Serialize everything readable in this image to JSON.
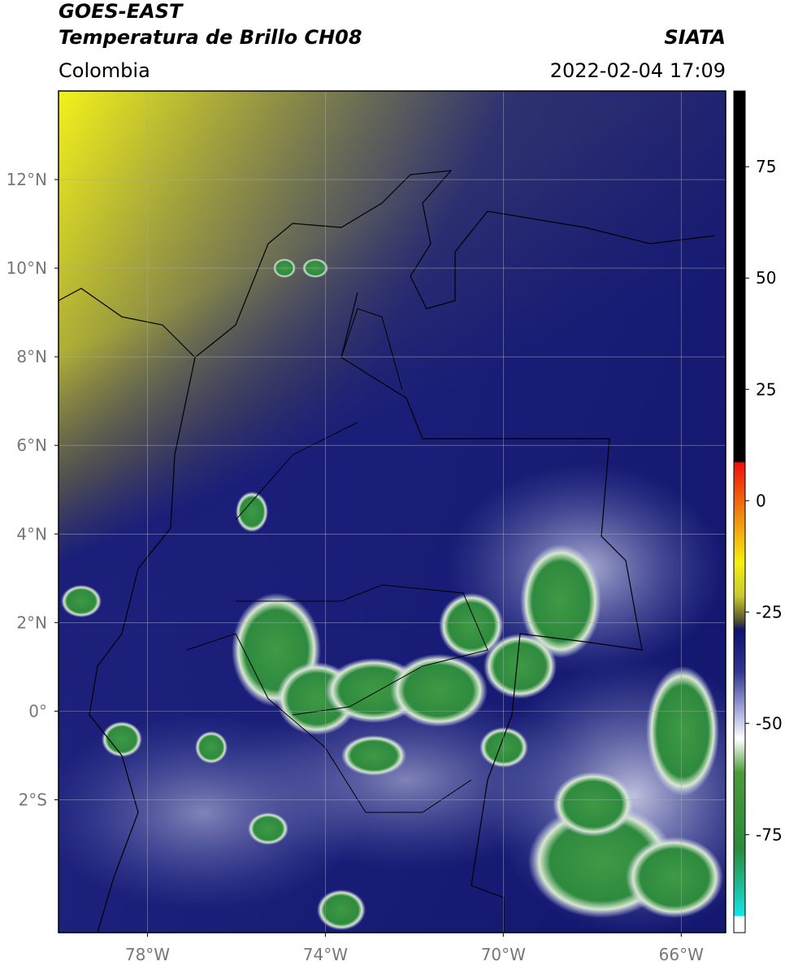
{
  "header": {
    "satellite": "GOES-EAST",
    "product": "Temperatura de Brillo CH08",
    "region": "Colombia",
    "source": "SIATA",
    "datetime": "2022-02-04 17:09"
  },
  "map": {
    "lonlim": [
      -80,
      -65
    ],
    "latlim": [
      -5,
      14
    ],
    "lonticks": [
      {
        "value": -78,
        "label": "78°W"
      },
      {
        "value": -74,
        "label": "74°W"
      },
      {
        "value": -70,
        "label": "70°W"
      },
      {
        "value": -66,
        "label": "66°W"
      }
    ],
    "latticks": [
      {
        "value": 12,
        "label": "12°N"
      },
      {
        "value": 10,
        "label": "10°N"
      },
      {
        "value": 8,
        "label": "8°N"
      },
      {
        "value": 6,
        "label": "6°N"
      },
      {
        "value": 4,
        "label": "4°N"
      },
      {
        "value": 2,
        "label": "2°N"
      },
      {
        "value": 0,
        "label": "0°"
      },
      {
        "value": -2,
        "label": "2°S"
      }
    ],
    "grid": true
  },
  "colorbar": {
    "lim": [
      -97,
      92
    ],
    "ticks": [
      75,
      50,
      25,
      0,
      -25,
      -50,
      -75
    ]
  }
}
